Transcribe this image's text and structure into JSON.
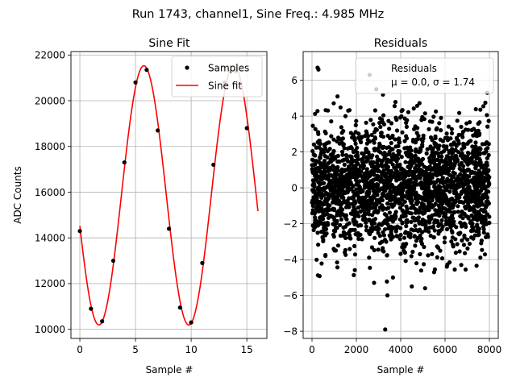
{
  "figure": {
    "suptitle": "Run 1743, channel1, Sine Freq.: 4.985 MHz"
  },
  "chart_data": [
    {
      "type": "scatter+line",
      "title": "Sine Fit",
      "xlabel": "Sample #",
      "ylabel": "ADC Counts",
      "xlim": [
        -0.8,
        16.8
      ],
      "ylim": [
        9600,
        22150
      ],
      "xticks": [
        0,
        5,
        10,
        15
      ],
      "yticks": [
        10000,
        12000,
        14000,
        16000,
        18000,
        20000,
        22000
      ],
      "grid": true,
      "legend": {
        "position": "top-right",
        "entries": [
          "Samples",
          "Sine fit"
        ]
      },
      "series": [
        {
          "name": "Samples",
          "kind": "scatter",
          "color": "#000000",
          "x": [
            0,
            1,
            2,
            3,
            4,
            5,
            6,
            7,
            8,
            9,
            10,
            11,
            12,
            13,
            14,
            15
          ],
          "y": [
            14300,
            10900,
            10350,
            13000,
            17300,
            20800,
            21350,
            18700,
            14400,
            10950,
            10300,
            12900,
            17200,
            20800,
            21300,
            18800
          ]
        },
        {
          "name": "Sine fit",
          "kind": "line",
          "color": "#ff0000",
          "model": {
            "offset": 15860,
            "amplitude": 5670,
            "period": 8.075,
            "peak_x": 5.75,
            "x_start": 0,
            "x_end": 16
          }
        }
      ]
    },
    {
      "type": "scatter",
      "title": "Residuals",
      "xlabel": "Sample #",
      "ylabel": "",
      "xlim": [
        -400,
        8400
      ],
      "ylim": [
        -8.4,
        7.6
      ],
      "xticks": [
        0,
        2000,
        4000,
        6000,
        8000
      ],
      "yticks": [
        -8,
        -6,
        -4,
        -2,
        0,
        2,
        4,
        6
      ],
      "grid": true,
      "legend": {
        "position": "top-right",
        "entries": [
          "Residuals"
        ],
        "stat_line": "μ = 0.0, σ = 1.74"
      },
      "series": [
        {
          "name": "Residuals",
          "kind": "scatter",
          "color": "#000000",
          "n_points": 8000,
          "mean": 0.0,
          "std": 1.74,
          "outliers": [
            {
              "x": 3300,
              "y": -7.9
            },
            {
              "x": 3400,
              "y": -6.0
            },
            {
              "x": 250,
              "y": 6.7
            },
            {
              "x": 290,
              "y": 6.6
            },
            {
              "x": 2600,
              "y": 6.3
            },
            {
              "x": 3200,
              "y": 5.2
            },
            {
              "x": 1150,
              "y": 5.1
            },
            {
              "x": 2900,
              "y": 5.5
            },
            {
              "x": 4500,
              "y": -5.5
            },
            {
              "x": 5100,
              "y": -5.6
            },
            {
              "x": 2800,
              "y": -5.3
            },
            {
              "x": 3650,
              "y": -5.0
            },
            {
              "x": 7900,
              "y": 5.3
            }
          ]
        }
      ]
    }
  ]
}
